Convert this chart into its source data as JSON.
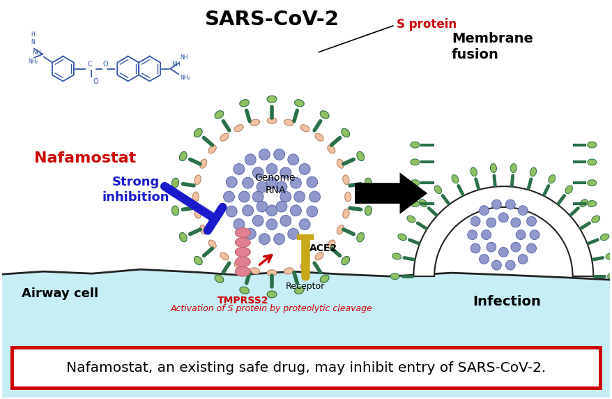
{
  "title": "SARS-CoV-2",
  "background_color": "#ffffff",
  "cell_color": "#c8eef5",
  "cell_line_color": "#222222",
  "virus_membrane_color": "#f0c0a0",
  "virus_rna_color": "#9098cc",
  "spike_stem_color": "#2a7048",
  "spike_head_color": "#90c060",
  "nafamostat_color": "#cc0000",
  "nafamostat_text": "Nafamostat",
  "strong_inhibition_color": "#1a1acc",
  "strong_inhibition_text": "Strong\ninhibition",
  "sprotein_label_color": "#cc0000",
  "sprotein_text": "S protein",
  "genome_rna_text": "Genome\nRNA",
  "ace2_text": "ACE2",
  "receptor_text": "Receptor",
  "tmprss2_color": "#cc0000",
  "tmprss2_text": "TMPRSS2",
  "activation_text": "Activation of S protein by proteolytic cleavage",
  "activation_color": "#cc0000",
  "membrane_fusion_text": "Membrane\nfusion",
  "infection_text": "Infection",
  "airway_cell_text": "Airway cell",
  "bottom_box_text": "Nafamostat, an existing safe drug, may inhibit entry of SARS-CoV-2.",
  "bottom_box_text_color": "#000000",
  "bottom_box_border_color": "#cc0000",
  "inhibition_bar_color": "#1a1acc",
  "red_arrow_color": "#cc0000",
  "chem_color": "#3355aa"
}
